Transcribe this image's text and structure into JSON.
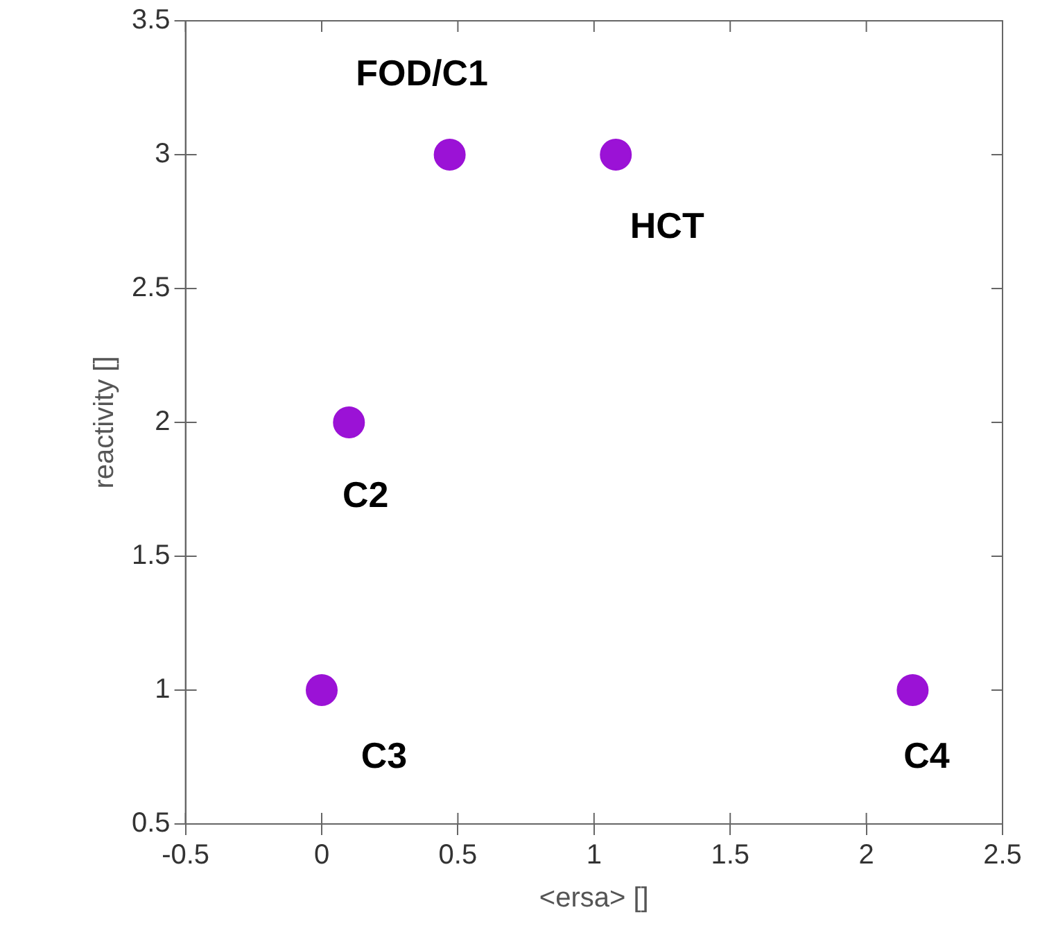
{
  "chart_data": {
    "type": "scatter",
    "xlabel": "<ersa> []",
    "ylabel": "reactivity []",
    "x": [
      0.47,
      1.08,
      0.1,
      0,
      2.17
    ],
    "values": [
      3,
      3,
      2,
      1,
      1
    ],
    "color": "#9b12d6",
    "marker": "circle",
    "xlim": [
      -0.5,
      2.5
    ],
    "xticks": [
      -0.5,
      0,
      0.5,
      1,
      1.5,
      2,
      2.5
    ],
    "ylim": [
      0.5,
      3.5
    ],
    "yticks": [
      0.5,
      1,
      1.5,
      2,
      2.5,
      3,
      3.5
    ],
    "grid": false,
    "legend": false,
    "annotations": [
      {
        "text": "FOD/C1",
        "x": 0.47,
        "y": 3
      },
      {
        "text": "HCT",
        "x": 1.08,
        "y": 3
      },
      {
        "text": "C2",
        "x": 0.1,
        "y": 2
      },
      {
        "text": "C3",
        "x": 0,
        "y": 1
      },
      {
        "text": "C4",
        "x": 2.17,
        "y": 1
      }
    ]
  }
}
